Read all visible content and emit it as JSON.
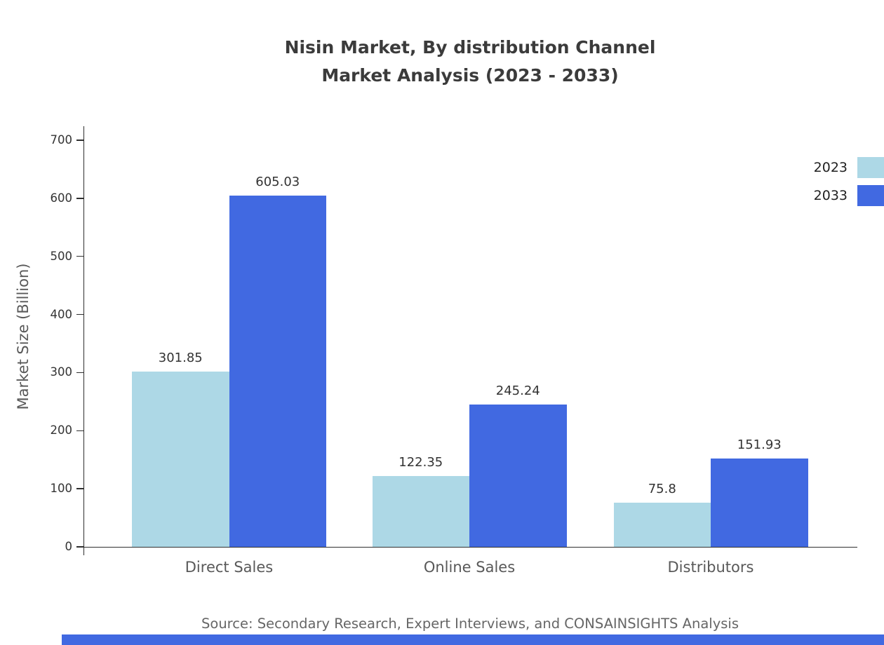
{
  "title": {
    "line1": "Nisin Market, By distribution Channel",
    "line2": "Market Analysis (2023 - 2033)"
  },
  "source": "Source: Secondary Research, Expert Interviews, and CONSAINSIGHTS Analysis",
  "colors": {
    "series_2023": "#ADD8E6",
    "series_2033": "#4169E1",
    "axis": "#2f2f2f",
    "footer_accent": "#4169E1"
  },
  "chart_data": {
    "type": "bar",
    "title": "Nisin Market, By distribution Channel Market Analysis (2023 - 2033)",
    "categories": [
      "Direct Sales",
      "Online Sales",
      "Distributors"
    ],
    "series": [
      {
        "name": "2023",
        "color": "#ADD8E6",
        "values": [
          301.85,
          122.35,
          75.8
        ]
      },
      {
        "name": "2033",
        "color": "#4169E1",
        "values": [
          605.03,
          245.24,
          151.93
        ]
      }
    ],
    "xlabel": "",
    "ylabel": "Market Size (Billion)",
    "ylim": [
      0,
      700
    ],
    "yticks": [
      0,
      100,
      200,
      300,
      400,
      500,
      600,
      700
    ],
    "grid": false,
    "legend_position": "top-right",
    "value_labels_shown": true
  },
  "legend": {
    "items": [
      {
        "label": "2023",
        "color": "#ADD8E6"
      },
      {
        "label": "2033",
        "color": "#4169E1"
      }
    ]
  }
}
